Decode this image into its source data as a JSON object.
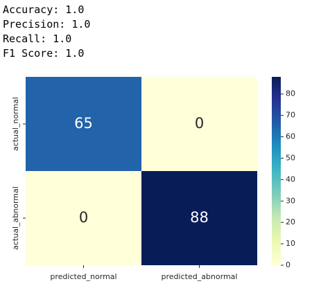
{
  "output_lines": [
    "Accuracy: 1.0",
    "Precision: 1.0",
    "Recall: 1.0",
    "F1 Score: 1.0"
  ],
  "chart_data": {
    "type": "heatmap",
    "rows": [
      "actual_normal",
      "actual_abnormal"
    ],
    "columns": [
      "predicted_normal",
      "predicted_abnormal"
    ],
    "values": [
      [
        65,
        0
      ],
      [
        0,
        88
      ]
    ],
    "colormap": "YlGnBu",
    "clim": [
      0,
      88
    ],
    "cticks": [
      0,
      10,
      20,
      30,
      40,
      50,
      60,
      70,
      80
    ]
  }
}
